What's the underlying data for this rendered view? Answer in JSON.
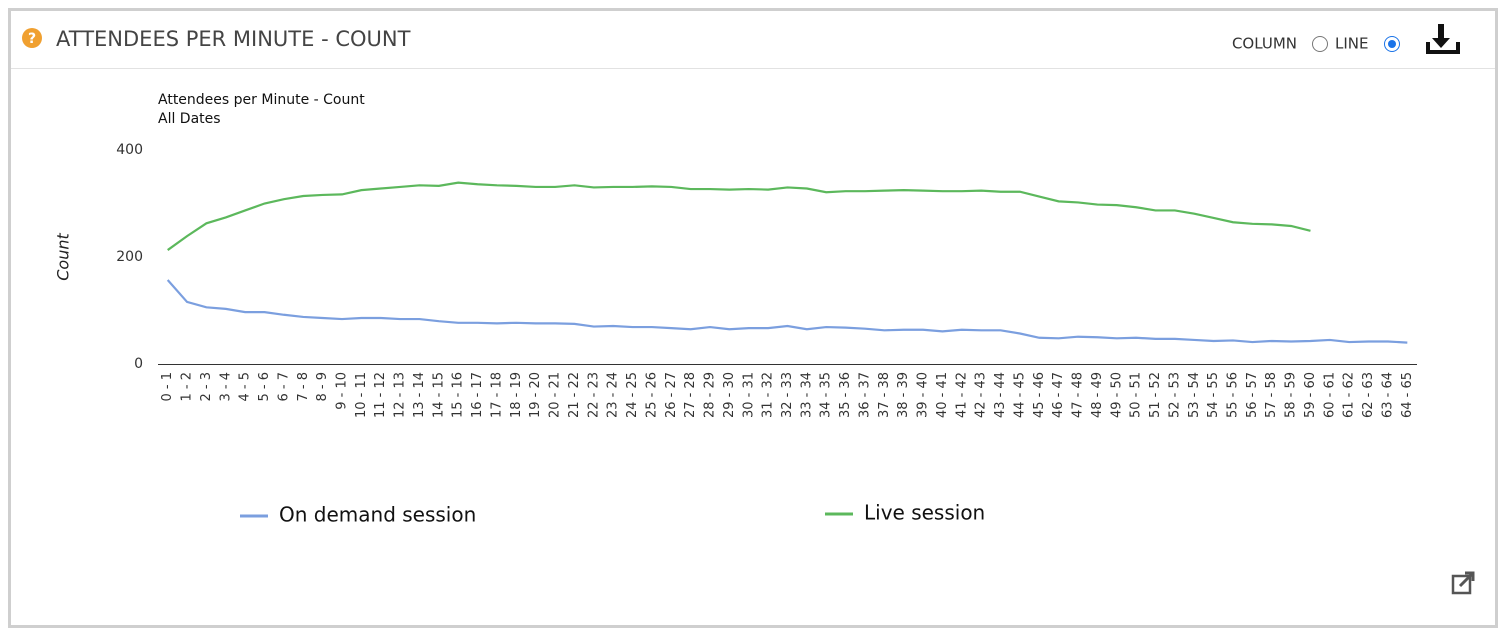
{
  "header": {
    "title": "ATTENDEES PER MINUTE - COUNT",
    "options": [
      "COLUMN",
      "LINE"
    ]
  },
  "chart_data": {
    "type": "line",
    "title": "Attendees per Minute - Count",
    "subtitle": "All Dates",
    "y_label": "Count",
    "categories": [
      "0 - 1",
      "1 - 2",
      "2 - 3",
      "3 - 4",
      "4 - 5",
      "5 - 6",
      "6 - 7",
      "7 - 8",
      "8 - 9",
      "9 - 10",
      "10 - 11",
      "11 - 12",
      "12 - 13",
      "13 - 14",
      "14 - 15",
      "15 - 16",
      "16 - 17",
      "17 - 18",
      "18 - 19",
      "19 - 20",
      "20 - 21",
      "21 - 22",
      "22 - 23",
      "23 - 24",
      "24 - 25",
      "25 - 26",
      "26 - 27",
      "27 - 28",
      "28 - 29",
      "29 - 30",
      "30 - 31",
      "31 - 32",
      "32 - 33",
      "33 - 34",
      "34 - 35",
      "35 - 36",
      "36 - 37",
      "37 - 38",
      "38 - 39",
      "39 - 40",
      "40 - 41",
      "41 - 42",
      "42 - 43",
      "43 - 44",
      "44 - 45",
      "45 - 46",
      "46 - 47",
      "47 - 48",
      "48 - 49",
      "49 - 50",
      "50 - 51",
      "51 - 52",
      "52 - 53",
      "53 - 54",
      "54 - 55",
      "55 - 56",
      "56 - 57",
      "57 - 58",
      "58 - 59",
      "59 - 60",
      "60 - 61",
      "61 - 62",
      "62 - 63",
      "63 - 64",
      "64 - 65"
    ],
    "series": [
      {
        "name": "On demand session",
        "color": "#7b9fdf",
        "values": [
          157,
          116,
          106,
          103,
          97,
          97,
          92,
          88,
          86,
          84,
          86,
          86,
          84,
          84,
          80,
          77,
          77,
          76,
          77,
          76,
          76,
          75,
          70,
          71,
          69,
          69,
          67,
          65,
          69,
          65,
          67,
          67,
          71,
          65,
          69,
          68,
          66,
          63,
          64,
          64,
          61,
          64,
          63,
          63,
          57,
          49,
          48,
          51,
          50,
          48,
          49,
          47,
          47,
          45,
          43,
          44,
          41,
          43,
          42,
          43,
          45,
          41,
          42,
          42,
          40
        ]
      },
      {
        "name": "Live session",
        "color": "#5cb85c",
        "values": [
          213,
          239,
          263,
          274,
          287,
          300,
          308,
          314,
          316,
          317,
          325,
          328,
          331,
          334,
          333,
          339,
          336,
          334,
          333,
          331,
          331,
          334,
          330,
          331,
          331,
          332,
          331,
          327,
          327,
          326,
          327,
          326,
          330,
          328,
          321,
          323,
          323,
          324,
          325,
          324,
          323,
          323,
          324,
          322,
          322,
          313,
          304,
          302,
          298,
          297,
          293,
          287,
          287,
          281,
          273,
          265,
          262,
          261,
          258,
          249,
          null,
          null,
          null,
          null,
          null
        ]
      }
    ],
    "ylim": [
      0,
      400
    ],
    "yticks": [
      0,
      200,
      400
    ],
    "grid": false
  }
}
